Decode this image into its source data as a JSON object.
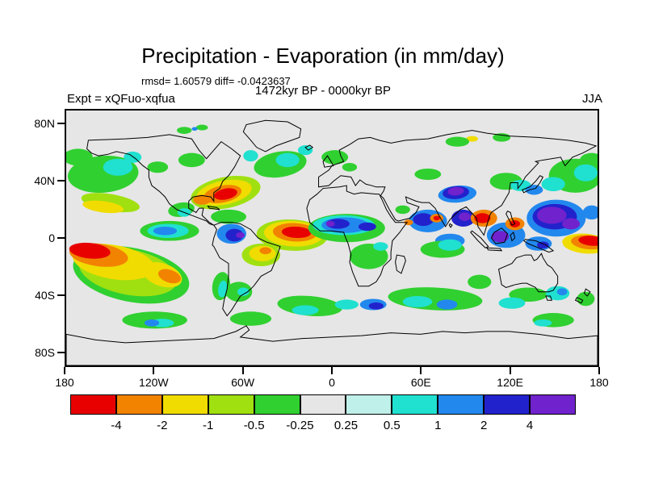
{
  "title": "Precipitation - Evaporation (in mm/day)",
  "annotations": {
    "stats": "rmsd= 1.60579 diff= -0.0423637",
    "period": "1472kyr BP - 0000kyr BP",
    "experiment": "Expt = xQFuo-xqfua",
    "season": "JJA"
  },
  "axes": {
    "y_ticks": [
      {
        "label": "80N",
        "lat": 80
      },
      {
        "label": "40N",
        "lat": 40
      },
      {
        "label": "0",
        "lat": 0
      },
      {
        "label": "40S",
        "lat": -40
      },
      {
        "label": "80S",
        "lat": -80
      }
    ],
    "x_ticks": [
      {
        "label": "180",
        "lon": -180
      },
      {
        "label": "120W",
        "lon": -120
      },
      {
        "label": "60W",
        "lon": -60
      },
      {
        "label": "0",
        "lon": 0
      },
      {
        "label": "60E",
        "lon": 60
      },
      {
        "label": "120E",
        "lon": 120
      },
      {
        "label": "180",
        "lon": 180
      }
    ]
  },
  "colorbar": {
    "tick_labels": [
      "-4",
      "-2",
      "-1",
      "-0.5",
      "-0.25",
      "0.25",
      "0.5",
      "1",
      "2",
      "4"
    ]
  },
  "chart_data": {
    "type": "heatmap",
    "title": "Precipitation - Evaporation (in mm/day)",
    "units": "mm/day",
    "stats": {
      "rmsd": 1.60579,
      "diff": -0.0423637
    },
    "comparison": "1472kyr BP - 0000kyr BP",
    "experiment": "xQFuo-xqfua",
    "season": "JJA",
    "projection": "equirectangular world map with coastlines",
    "lon_range": [
      -180,
      180
    ],
    "lat_range": [
      -90,
      90
    ],
    "contour_levels": [
      -4,
      -2,
      -1,
      -0.5,
      -0.25,
      0.25,
      0.5,
      1,
      2,
      4
    ],
    "level_colors": [
      "#e80000",
      "#f28300",
      "#f0dc00",
      "#a0e010",
      "#30d030",
      "#e6e6e6",
      "#c0f0ea",
      "#20e0d0",
      "#2288ee",
      "#2222cc",
      "#7022cc"
    ],
    "regions_format": "[lon_deg, lat_deg, rx_deg, ry_deg, rotation_deg, level_color_index] - approximate filled anomaly regions read from the map",
    "regions": [
      [
        -172,
        57,
        10,
        6,
        0,
        4
      ],
      [
        176,
        55,
        8,
        5,
        0,
        4
      ],
      [
        165,
        44,
        18,
        12,
        0,
        4
      ],
      [
        172,
        46,
        8,
        6,
        0,
        7
      ],
      [
        -155,
        45,
        24,
        13,
        -5,
        4
      ],
      [
        -145,
        50,
        10,
        6,
        0,
        7
      ],
      [
        -135,
        57,
        6,
        4,
        0,
        7
      ],
      [
        -150,
        25,
        20,
        6,
        10,
        3
      ],
      [
        -155,
        22,
        14,
        4,
        8,
        2
      ],
      [
        150,
        38,
        8,
        5,
        0,
        7
      ],
      [
        118,
        40,
        11,
        6,
        0,
        4
      ],
      [
        128,
        37,
        7,
        4,
        0,
        7
      ],
      [
        137,
        34,
        6,
        3.5,
        0,
        8
      ],
      [
        65,
        45,
        9,
        4,
        0,
        4
      ],
      [
        95,
        70,
        4,
        2,
        0,
        2
      ],
      [
        85,
        68,
        8,
        3.5,
        0,
        4
      ],
      [
        115,
        71,
        6,
        3,
        0,
        4
      ],
      [
        85,
        31,
        13,
        6,
        -5,
        8
      ],
      [
        84,
        32,
        9,
        4.5,
        -5,
        9
      ],
      [
        84,
        33,
        5.5,
        3,
        -5,
        10
      ],
      [
        65,
        12,
        13,
        8,
        0,
        8
      ],
      [
        62,
        13,
        7,
        4.5,
        0,
        9
      ],
      [
        71,
        14,
        4.5,
        3,
        0,
        1
      ],
      [
        71,
        14,
        2.2,
        1.6,
        0,
        0
      ],
      [
        89,
        14,
        8,
        6,
        0,
        9
      ],
      [
        90,
        15,
        4,
        3,
        0,
        10
      ],
      [
        48,
        20,
        5,
        3,
        0,
        4
      ],
      [
        52,
        11,
        3,
        2,
        0,
        1
      ],
      [
        80,
        -2,
        10,
        5,
        0,
        8
      ],
      [
        103,
        14,
        9,
        6,
        0,
        1
      ],
      [
        102,
        14,
        5.5,
        3.5,
        0,
        0
      ],
      [
        118,
        2,
        13,
        9,
        0,
        8
      ],
      [
        114,
        1,
        6,
        4,
        0,
        10
      ],
      [
        124,
        10,
        6.5,
        4.5,
        0,
        1
      ],
      [
        124,
        10,
        3.5,
        2.5,
        0,
        0
      ],
      [
        140,
        -4,
        9,
        5,
        0,
        8
      ],
      [
        143,
        -5,
        4,
        2.5,
        0,
        9
      ],
      [
        152,
        14,
        20,
        13,
        0,
        8
      ],
      [
        151,
        15,
        15,
        9,
        0,
        9
      ],
      [
        149,
        16,
        10,
        6,
        0,
        10
      ],
      [
        162,
        10,
        6,
        4,
        0,
        10
      ],
      [
        176,
        18,
        6,
        5,
        0,
        8
      ],
      [
        172,
        -4,
        16,
        7,
        5,
        2
      ],
      [
        174,
        -3,
        12,
        5,
        5,
        1
      ],
      [
        176,
        -2,
        9,
        3.5,
        5,
        0
      ],
      [
        -110,
        5,
        20,
        7,
        0,
        4
      ],
      [
        -111,
        5,
        14,
        5,
        0,
        7
      ],
      [
        -113,
        5,
        8,
        3,
        0,
        8
      ],
      [
        -136,
        -26,
        40,
        19,
        12,
        4
      ],
      [
        -138,
        -24,
        34,
        16,
        12,
        3
      ],
      [
        -148,
        -17,
        28,
        12,
        10,
        2
      ],
      [
        -115,
        -26,
        14,
        8,
        20,
        2
      ],
      [
        -158,
        -12,
        20,
        8,
        8,
        1
      ],
      [
        -110,
        -27,
        8,
        4.5,
        20,
        1
      ],
      [
        -164,
        -9,
        14,
        5.5,
        6,
        0
      ],
      [
        -102,
        20,
        9,
        5,
        -10,
        4
      ],
      [
        -100,
        18,
        4.5,
        3,
        0,
        7
      ],
      [
        -95,
        55,
        9,
        5,
        0,
        4
      ],
      [
        -118,
        50,
        7,
        4,
        0,
        4
      ],
      [
        -100,
        76,
        5,
        2.5,
        0,
        4
      ],
      [
        -88,
        78,
        4,
        2,
        0,
        4
      ],
      [
        -93,
        77,
        2,
        1.3,
        0,
        8
      ],
      [
        -72,
        32,
        24,
        11,
        -12,
        3
      ],
      [
        -73,
        32,
        19,
        8.5,
        -12,
        2
      ],
      [
        -74,
        31,
        13,
        6,
        -12,
        1
      ],
      [
        -72,
        31,
        8,
        3.8,
        -12,
        0
      ],
      [
        -88,
        27,
        6,
        3.5,
        0,
        1
      ],
      [
        -70,
        15,
        12,
        5,
        0,
        4
      ],
      [
        -68,
        3,
        10,
        7,
        0,
        8
      ],
      [
        -66,
        2,
        6,
        4.5,
        0,
        9
      ],
      [
        -62,
        2,
        3,
        2,
        0,
        10
      ],
      [
        -27,
        2,
        24,
        11,
        3,
        3
      ],
      [
        -26,
        3,
        20,
        9,
        3,
        2
      ],
      [
        -25,
        4,
        15,
        6.5,
        3,
        1
      ],
      [
        -24,
        4,
        10,
        4,
        3,
        0
      ],
      [
        -48,
        -12,
        13,
        8,
        0,
        3
      ],
      [
        -47,
        -11,
        9,
        5.5,
        0,
        2
      ],
      [
        -45,
        -9,
        4,
        2.5,
        0,
        1
      ],
      [
        -63,
        -38,
        9,
        7,
        0,
        4
      ],
      [
        -60,
        -38,
        4,
        3,
        0,
        7
      ],
      [
        -75,
        -34,
        6,
        10,
        8,
        4
      ],
      [
        -74,
        -36,
        3,
        6,
        8,
        7
      ],
      [
        10,
        7,
        26,
        10,
        0,
        4
      ],
      [
        8,
        9,
        21,
        7,
        0,
        7
      ],
      [
        9,
        9,
        16,
        5.5,
        0,
        8
      ],
      [
        4,
        10,
        8,
        3.5,
        0,
        9
      ],
      [
        24,
        8,
        6,
        3,
        0,
        9
      ],
      [
        -1,
        10,
        3,
        2,
        0,
        10
      ],
      [
        25,
        -13,
        13,
        9,
        0,
        4
      ],
      [
        33,
        -6,
        5,
        3,
        0,
        7
      ],
      [
        75,
        -8,
        15,
        6,
        0,
        4
      ],
      [
        80,
        -5,
        8,
        4,
        0,
        7
      ],
      [
        70,
        -43,
        32,
        8,
        3,
        4
      ],
      [
        58,
        -45,
        10,
        4,
        0,
        7
      ],
      [
        78,
        -47,
        7,
        3.5,
        0,
        8
      ],
      [
        28,
        -47,
        9,
        4,
        0,
        8
      ],
      [
        30,
        -48,
        5,
        2.5,
        0,
        9
      ],
      [
        100,
        -31,
        8,
        5,
        0,
        4
      ],
      [
        133,
        -40,
        13,
        5,
        0,
        4
      ],
      [
        122,
        -46,
        9,
        4,
        0,
        7
      ],
      [
        153,
        -39,
        8,
        5,
        0,
        7
      ],
      [
        156,
        -38,
        3.5,
        2.5,
        0,
        8
      ],
      [
        172,
        -43,
        6,
        5,
        0,
        4
      ],
      [
        -120,
        -58,
        22,
        6,
        0,
        4
      ],
      [
        -115,
        -60,
        8,
        3,
        0,
        7
      ],
      [
        -122,
        -60,
        5,
        2.5,
        0,
        8
      ],
      [
        -55,
        -57,
        14,
        5,
        0,
        4
      ],
      [
        -15,
        -48,
        22,
        7,
        5,
        4
      ],
      [
        -18,
        -51,
        9,
        3.5,
        0,
        7
      ],
      [
        10,
        -47,
        8,
        3.5,
        0,
        7
      ],
      [
        150,
        -58,
        14,
        5,
        0,
        4
      ],
      [
        143,
        -60,
        6,
        2.5,
        0,
        7
      ],
      [
        -35,
        52,
        18,
        9,
        -10,
        4
      ],
      [
        -30,
        55,
        8,
        5,
        0,
        7
      ],
      [
        -18,
        62,
        5,
        3.5,
        0,
        7
      ],
      [
        -55,
        58,
        5,
        4,
        0,
        7
      ],
      [
        2,
        57,
        9,
        5,
        0,
        4
      ],
      [
        12,
        50,
        5,
        3,
        0,
        4
      ]
    ]
  }
}
